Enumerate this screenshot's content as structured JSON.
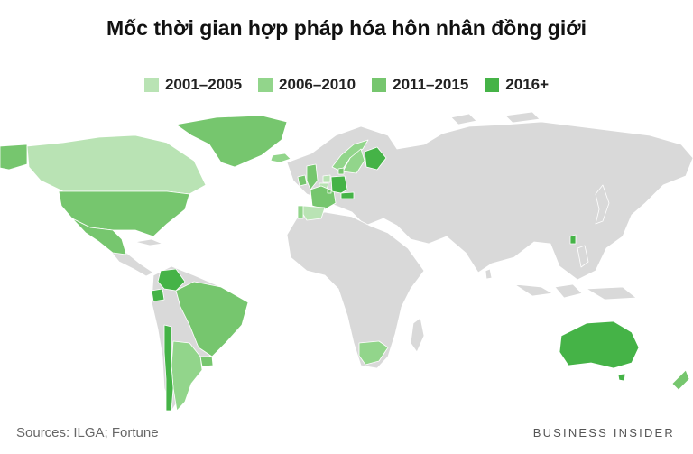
{
  "title": "Mốc thời gian hợp pháp hóa hôn nhân đồng giới",
  "legend": [
    {
      "label": "2001–2005",
      "color": "#b9e3b4"
    },
    {
      "label": "2006–2010",
      "color": "#92d58b"
    },
    {
      "label": "2011–2015",
      "color": "#76c66e"
    },
    {
      "label": "2016+",
      "color": "#45b347"
    }
  ],
  "base_color": "#d9d9d9",
  "regions": [
    {
      "name": "alaska",
      "period": "2011–2015"
    },
    {
      "name": "canada",
      "period": "2001–2005"
    },
    {
      "name": "greenland",
      "period": "2011–2015"
    },
    {
      "name": "iceland",
      "period": "2006–2010"
    },
    {
      "name": "usa",
      "period": "2011–2015"
    },
    {
      "name": "mexico",
      "period": "2011–2015"
    },
    {
      "name": "colombia",
      "period": "2016+"
    },
    {
      "name": "ecuador",
      "period": "2016+"
    },
    {
      "name": "brazil",
      "period": "2011–2015"
    },
    {
      "name": "uruguay",
      "period": "2011–2015"
    },
    {
      "name": "argentina",
      "period": "2006–2010"
    },
    {
      "name": "chile",
      "period": "2016+"
    },
    {
      "name": "ireland",
      "period": "2011–2015"
    },
    {
      "name": "uk",
      "period": "2011–2015"
    },
    {
      "name": "netherlands",
      "period": "2001–2005"
    },
    {
      "name": "belgium",
      "period": "2001–2005"
    },
    {
      "name": "france",
      "period": "2011–2015"
    },
    {
      "name": "spain",
      "period": "2001–2005"
    },
    {
      "name": "portugal",
      "period": "2006–2010"
    },
    {
      "name": "germany",
      "period": "2016+"
    },
    {
      "name": "austria",
      "period": "2016+"
    },
    {
      "name": "luxembourg",
      "period": "2011–2015"
    },
    {
      "name": "norway",
      "period": "2006–2010"
    },
    {
      "name": "sweden",
      "period": "2006–2010"
    },
    {
      "name": "finland",
      "period": "2016+"
    },
    {
      "name": "denmark",
      "period": "2011–2015"
    },
    {
      "name": "south-africa",
      "period": "2006–2010"
    },
    {
      "name": "australia",
      "period": "2016+"
    },
    {
      "name": "new-zealand",
      "period": "2011–2015"
    },
    {
      "name": "taiwan",
      "period": "2016+"
    }
  ],
  "source": "Sources: ILGA; Fortune",
  "brand": "BUSINESS INSIDER"
}
